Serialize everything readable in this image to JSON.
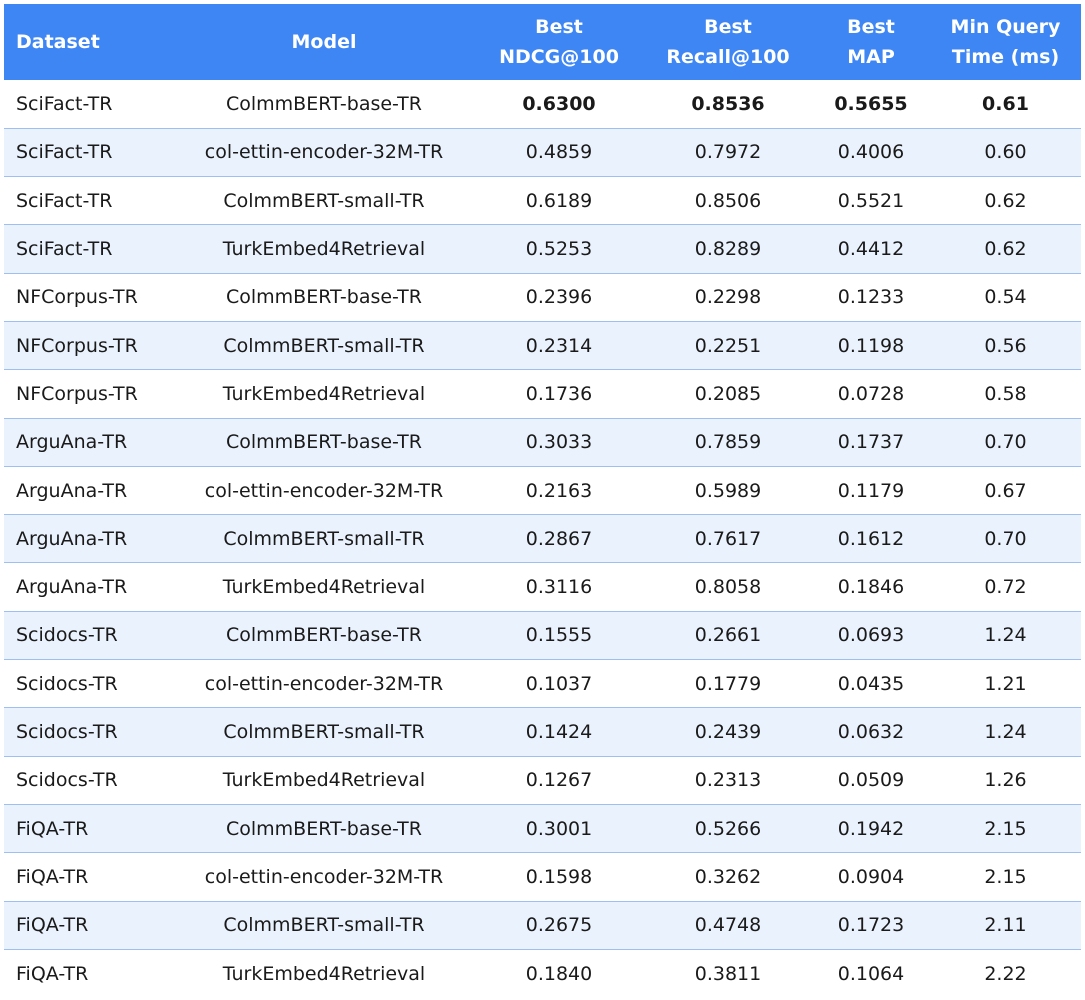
{
  "headers": {
    "dataset": "Dataset",
    "model": "Model",
    "ndcg": [
      "Best",
      "NDCG@100"
    ],
    "recall": [
      "Best",
      "Recall@100"
    ],
    "map": [
      "Best",
      "MAP"
    ],
    "time": [
      "Min Query",
      "Time (ms)"
    ]
  },
  "rows": [
    {
      "dataset": "SciFact-TR",
      "model": "ColmmBERT-base-TR",
      "ndcg": "0.6300",
      "recall": "0.8536",
      "map": "0.5655",
      "time": "0.61",
      "bold": true
    },
    {
      "dataset": "SciFact-TR",
      "model": "col-ettin-encoder-32M-TR",
      "ndcg": "0.4859",
      "recall": "0.7972",
      "map": "0.4006",
      "time": "0.60"
    },
    {
      "dataset": "SciFact-TR",
      "model": "ColmmBERT-small-TR",
      "ndcg": "0.6189",
      "recall": "0.8506",
      "map": "0.5521",
      "time": "0.62"
    },
    {
      "dataset": "SciFact-TR",
      "model": "TurkEmbed4Retrieval",
      "ndcg": "0.5253",
      "recall": "0.8289",
      "map": "0.4412",
      "time": "0.62"
    },
    {
      "dataset": "NFCorpus-TR",
      "model": "ColmmBERT-base-TR",
      "ndcg": "0.2396",
      "recall": "0.2298",
      "map": "0.1233",
      "time": "0.54"
    },
    {
      "dataset": "NFCorpus-TR",
      "model": "ColmmBERT-small-TR",
      "ndcg": "0.2314",
      "recall": "0.2251",
      "map": "0.1198",
      "time": "0.56"
    },
    {
      "dataset": "NFCorpus-TR",
      "model": "TurkEmbed4Retrieval",
      "ndcg": "0.1736",
      "recall": "0.2085",
      "map": "0.0728",
      "time": "0.58"
    },
    {
      "dataset": "ArguAna-TR",
      "model": "ColmmBERT-base-TR",
      "ndcg": "0.3033",
      "recall": "0.7859",
      "map": "0.1737",
      "time": "0.70"
    },
    {
      "dataset": "ArguAna-TR",
      "model": "col-ettin-encoder-32M-TR",
      "ndcg": "0.2163",
      "recall": "0.5989",
      "map": "0.1179",
      "time": "0.67"
    },
    {
      "dataset": "ArguAna-TR",
      "model": "ColmmBERT-small-TR",
      "ndcg": "0.2867",
      "recall": "0.7617",
      "map": "0.1612",
      "time": "0.70"
    },
    {
      "dataset": "ArguAna-TR",
      "model": "TurkEmbed4Retrieval",
      "ndcg": "0.3116",
      "recall": "0.8058",
      "map": "0.1846",
      "time": "0.72"
    },
    {
      "dataset": "Scidocs-TR",
      "model": "ColmmBERT-base-TR",
      "ndcg": "0.1555",
      "recall": "0.2661",
      "map": "0.0693",
      "time": "1.24"
    },
    {
      "dataset": "Scidocs-TR",
      "model": "col-ettin-encoder-32M-TR",
      "ndcg": "0.1037",
      "recall": "0.1779",
      "map": "0.0435",
      "time": "1.21"
    },
    {
      "dataset": "Scidocs-TR",
      "model": "ColmmBERT-small-TR",
      "ndcg": "0.1424",
      "recall": "0.2439",
      "map": "0.0632",
      "time": "1.24"
    },
    {
      "dataset": "Scidocs-TR",
      "model": "TurkEmbed4Retrieval",
      "ndcg": "0.1267",
      "recall": "0.2313",
      "map": "0.0509",
      "time": "1.26"
    },
    {
      "dataset": "FiQA-TR",
      "model": "ColmmBERT-base-TR",
      "ndcg": "0.3001",
      "recall": "0.5266",
      "map": "0.1942",
      "time": "2.15"
    },
    {
      "dataset": "FiQA-TR",
      "model": "col-ettin-encoder-32M-TR",
      "ndcg": "0.1598",
      "recall": "0.3262",
      "map": "0.0904",
      "time": "2.15"
    },
    {
      "dataset": "FiQA-TR",
      "model": "ColmmBERT-small-TR",
      "ndcg": "0.2675",
      "recall": "0.4748",
      "map": "0.1723",
      "time": "2.11"
    },
    {
      "dataset": "FiQA-TR",
      "model": "TurkEmbed4Retrieval",
      "ndcg": "0.1840",
      "recall": "0.3811",
      "map": "0.1064",
      "time": "2.22"
    }
  ],
  "colors": {
    "header_bg": "#3f86f5",
    "stripe": "#eaf2fd",
    "divider": "#9fbff2"
  }
}
